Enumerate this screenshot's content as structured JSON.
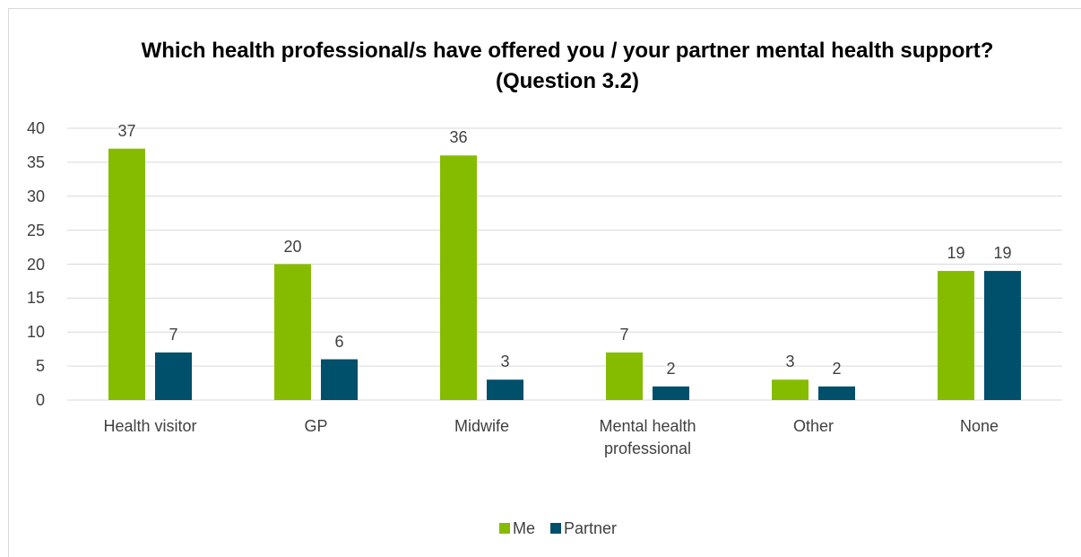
{
  "chart_data": {
    "type": "bar",
    "title": "Which health professional/s have offered you / your partner mental health support? (Question 3.2)",
    "categories": [
      "Health visitor",
      "GP",
      "Midwife",
      "Mental health professional",
      "Other",
      "None"
    ],
    "series": [
      {
        "name": "Me",
        "color": "#86bc00",
        "values": [
          37,
          20,
          36,
          7,
          3,
          19
        ]
      },
      {
        "name": "Partner",
        "color": "#004f6b",
        "values": [
          7,
          6,
          3,
          2,
          2,
          19
        ]
      }
    ],
    "ylim": [
      0,
      40
    ],
    "yticks": [
      0,
      5,
      10,
      15,
      20,
      25,
      30,
      35,
      40
    ],
    "grid": true,
    "legend": "bottom"
  }
}
